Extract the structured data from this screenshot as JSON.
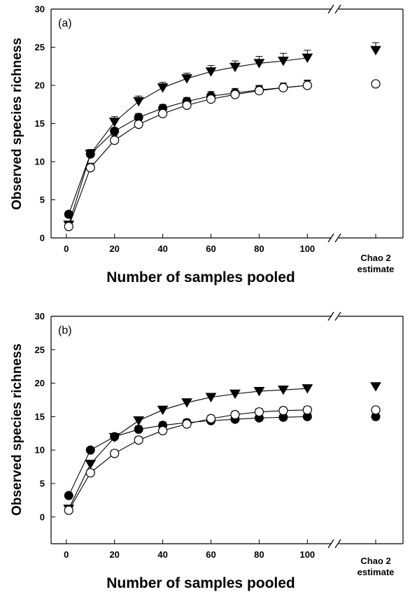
{
  "chart_data": [
    {
      "type": "line",
      "panel_label": "(a)",
      "xlabel": "Number of samples pooled",
      "ylabel": "Observed species richness",
      "x_ticks": [
        "0",
        "20",
        "40",
        "60",
        "80",
        "100"
      ],
      "y_ticks": [
        "0",
        "5",
        "10",
        "15",
        "20",
        "25",
        "30"
      ],
      "xlim": [
        -4,
        106
      ],
      "ylim": [
        0,
        30
      ],
      "extra_category_label_line1": "Chao 2",
      "extra_category_label_line2": "estimate",
      "x": [
        1,
        10,
        20,
        30,
        40,
        50,
        60,
        70,
        80,
        90,
        100
      ],
      "series": [
        {
          "marker": "triangle-down-filled",
          "values": [
            1.7,
            11.0,
            15.2,
            17.9,
            19.7,
            20.9,
            21.8,
            22.4,
            22.9,
            23.2,
            23.6
          ],
          "errors": [
            0.3,
            0.6,
            0.7,
            0.7,
            0.7,
            0.7,
            0.8,
            0.8,
            0.9,
            1.0,
            1.0
          ],
          "chao2": 24.6,
          "chao2_error": 1.0
        },
        {
          "marker": "circle-filled",
          "values": [
            3.1,
            11.0,
            14.0,
            15.8,
            17.0,
            17.9,
            18.6,
            19.0,
            19.4,
            19.7,
            20.0
          ],
          "errors": [
            0.2,
            0.4,
            0.4,
            0.5,
            0.5,
            0.5,
            0.6,
            0.6,
            0.6,
            0.6,
            0.7
          ],
          "chao2": null,
          "chao2_error": null
        },
        {
          "marker": "circle-open",
          "values": [
            1.5,
            9.2,
            12.8,
            14.9,
            16.3,
            17.4,
            18.2,
            18.8,
            19.3,
            19.7,
            20.0
          ],
          "errors": [
            0.2,
            0.6,
            0.6,
            0.6,
            0.6,
            0.6,
            0.6,
            0.6,
            0.6,
            0.6,
            0.6
          ],
          "chao2": 20.2,
          "chao2_error": null
        }
      ]
    },
    {
      "type": "line",
      "panel_label": "(b)",
      "xlabel": "Number of samples pooled",
      "ylabel": "Observed species richness",
      "x_ticks": [
        "0",
        "20",
        "40",
        "60",
        "80",
        "100"
      ],
      "y_ticks": [
        "0",
        "5",
        "10",
        "15",
        "20",
        "25",
        "30"
      ],
      "xlim": [
        -4,
        106
      ],
      "ylim": [
        -4,
        30
      ],
      "extra_category_label_line1": "Chao 2",
      "extra_category_label_line2": "estimate",
      "x": [
        1,
        10,
        20,
        30,
        40,
        50,
        60,
        70,
        80,
        90,
        100
      ],
      "series": [
        {
          "marker": "triangle-down-filled",
          "values": [
            1.2,
            7.9,
            11.9,
            14.4,
            16.0,
            17.1,
            17.9,
            18.4,
            18.8,
            19.0,
            19.2
          ],
          "errors": [
            0.2,
            0.4,
            0.4,
            0.4,
            0.4,
            0.4,
            0.4,
            0.4,
            0.4,
            0.4,
            0.4
          ],
          "chao2": 19.5,
          "chao2_error": null
        },
        {
          "marker": "circle-filled",
          "values": [
            3.2,
            10.0,
            12.0,
            13.1,
            13.7,
            14.1,
            14.4,
            14.6,
            14.8,
            14.9,
            15.0
          ],
          "errors": [
            0.3,
            0.4,
            0.4,
            0.5,
            0.5,
            0.5,
            0.5,
            0.5,
            0.5,
            0.5,
            0.5
          ],
          "chao2": 15.0,
          "chao2_error": null
        },
        {
          "marker": "circle-open",
          "values": [
            1.0,
            6.6,
            9.5,
            11.5,
            12.9,
            13.9,
            14.7,
            15.3,
            15.7,
            15.9,
            16.0
          ],
          "errors": [
            0.3,
            0.5,
            0.5,
            0.5,
            0.5,
            0.5,
            0.5,
            0.5,
            0.5,
            0.5,
            0.5
          ],
          "chao2": 16.0,
          "chao2_error": null
        }
      ]
    }
  ]
}
